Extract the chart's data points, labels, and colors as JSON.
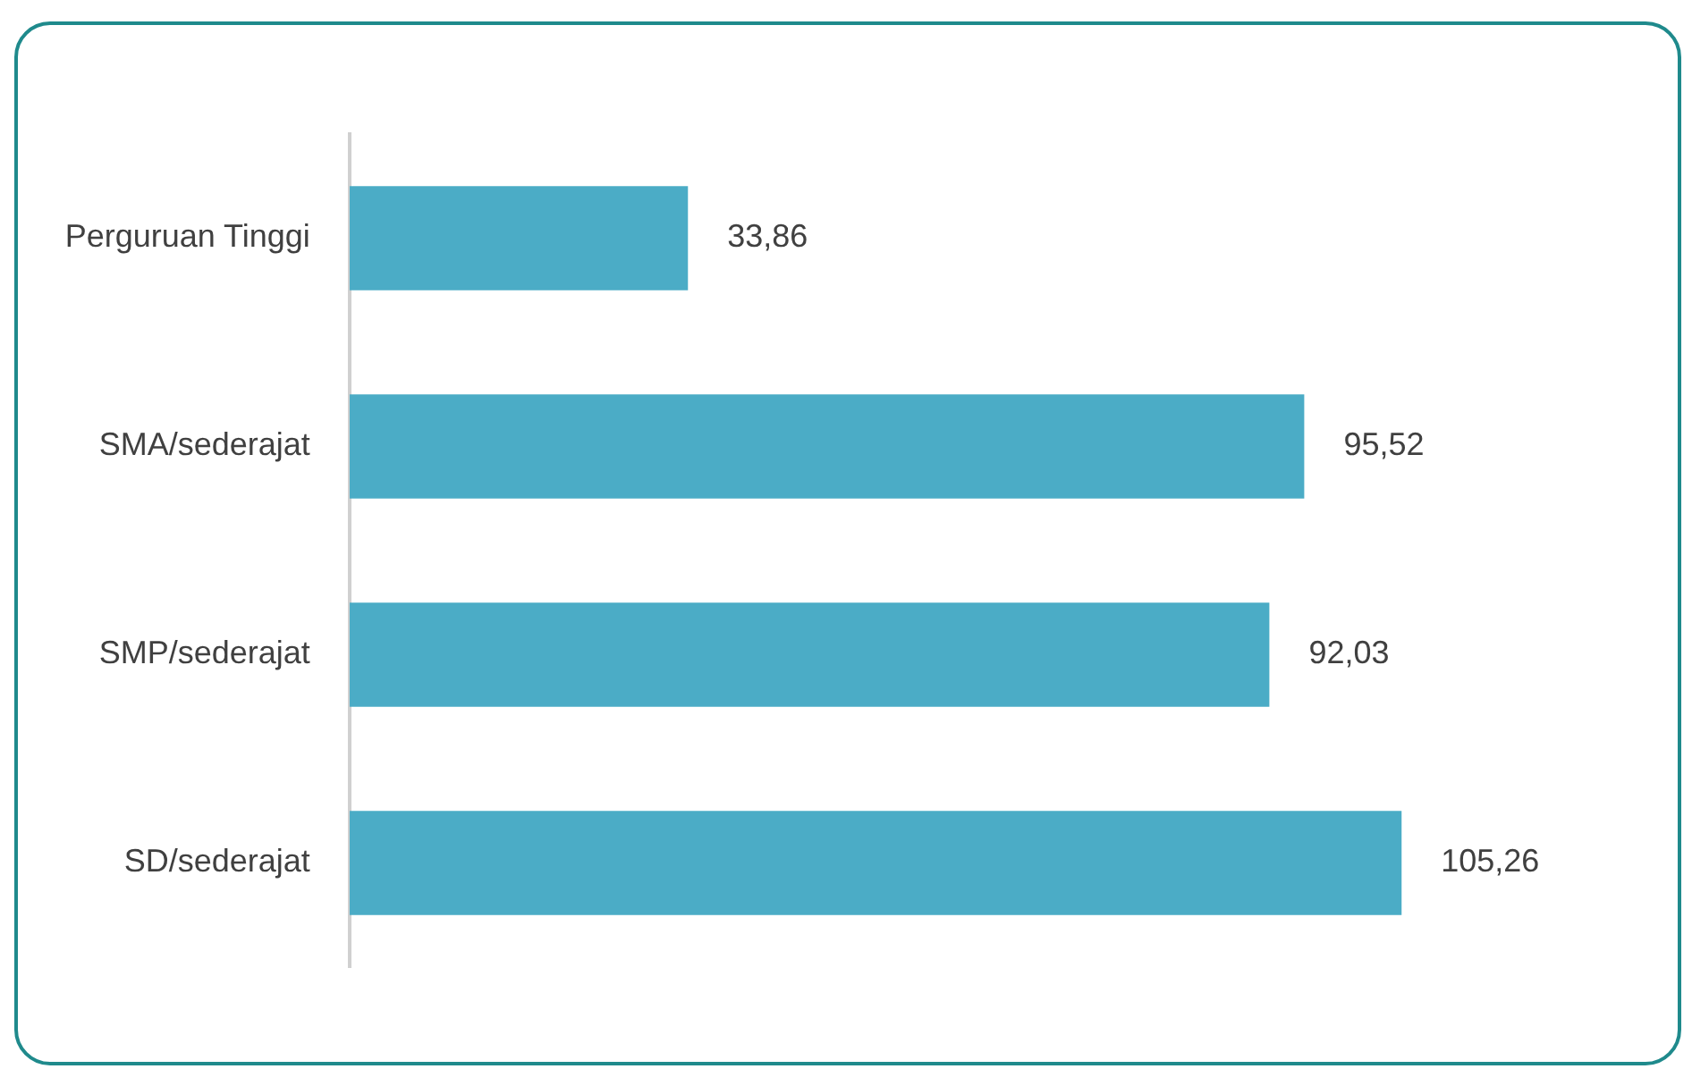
{
  "chart_data": {
    "type": "bar",
    "orientation": "horizontal",
    "categories": [
      "Perguruan Tinggi",
      "SMA/sederajat",
      "SMP/sederajat",
      "SD/sederajat"
    ],
    "values": [
      33.86,
      95.52,
      92.03,
      105.26
    ],
    "value_labels": [
      "33,86",
      "95,52",
      "92,03",
      "105,26"
    ],
    "color": "#4bacc6",
    "legend": false,
    "tick_labels": "y"
  }
}
